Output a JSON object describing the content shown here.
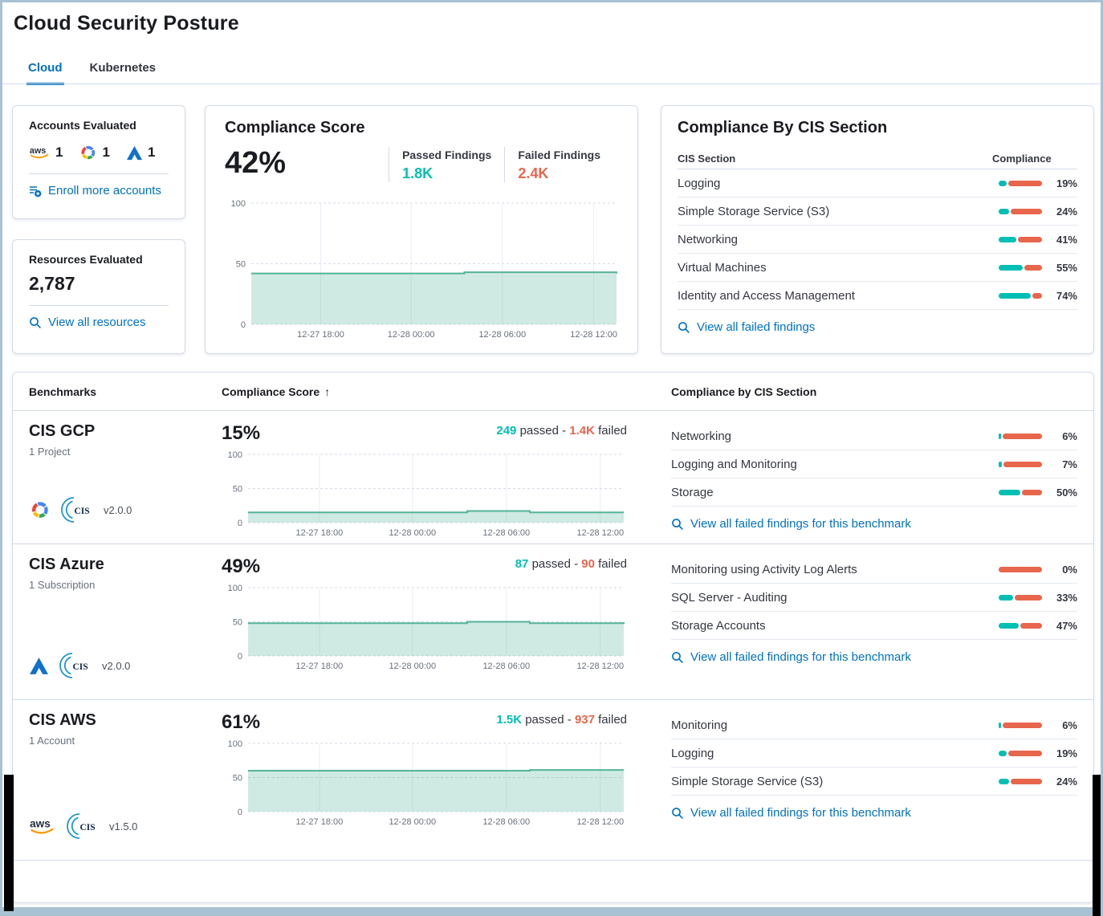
{
  "page": {
    "title": "Cloud Security Posture"
  },
  "tabs": [
    {
      "label": "Cloud",
      "active": true
    },
    {
      "label": "Kubernetes",
      "active": false
    }
  ],
  "colors": {
    "accent_blue": "#0071c2",
    "passed_teal": "#00bfb3",
    "failed_red": "#e7664c",
    "trend_line": "#54b399"
  },
  "accounts_card": {
    "title": "Accounts Evaluated",
    "providers": [
      {
        "icon": "aws-icon",
        "count": "1"
      },
      {
        "icon": "gcp-icon",
        "count": "1"
      },
      {
        "icon": "azure-icon",
        "count": "1"
      }
    ],
    "link": "Enroll more accounts"
  },
  "resources_card": {
    "title": "Resources Evaluated",
    "count": "2,787",
    "link": "View all resources"
  },
  "score_card": {
    "title": "Compliance Score",
    "score": "42%",
    "passed_label": "Passed Findings",
    "passed_value": "1.8K",
    "failed_label": "Failed Findings",
    "failed_value": "2.4K"
  },
  "cis_card": {
    "title": "Compliance By CIS Section",
    "col_section": "CIS Section",
    "col_compliance": "Compliance",
    "rows": [
      {
        "name": "Logging",
        "pct": 19,
        "pct_label": "19%"
      },
      {
        "name": "Simple Storage Service (S3)",
        "pct": 24,
        "pct_label": "24%"
      },
      {
        "name": "Networking",
        "pct": 41,
        "pct_label": "41%"
      },
      {
        "name": "Virtual Machines",
        "pct": 55,
        "pct_label": "55%"
      },
      {
        "name": "Identity and Access Management",
        "pct": 74,
        "pct_label": "74%"
      }
    ],
    "link": "View all failed findings"
  },
  "benchmarks": {
    "col_benchmarks": "Benchmarks",
    "col_score": "Compliance Score",
    "sort_icon": "↑",
    "col_cis": "Compliance by CIS Section",
    "link": "View all failed findings for this benchmark",
    "rows": [
      {
        "name": "CIS GCP",
        "subtitle": "1 Project",
        "provider_icon": "gcp-icon",
        "version": "v2.0.0",
        "score": "15%",
        "passed_value": "249",
        "passed_suffix": "passed -",
        "failed_value": "1.4K",
        "failed_suffix": "failed",
        "sections": [
          {
            "name": "Networking",
            "pct": 6,
            "pct_label": "6%"
          },
          {
            "name": "Logging and Monitoring",
            "pct": 7,
            "pct_label": "7%"
          },
          {
            "name": "Storage",
            "pct": 50,
            "pct_label": "50%"
          }
        ]
      },
      {
        "name": "CIS Azure",
        "subtitle": "1 Subscription",
        "provider_icon": "azure-icon",
        "version": "v2.0.0",
        "score": "49%",
        "passed_value": "87",
        "passed_suffix": "passed -",
        "failed_value": "90",
        "failed_suffix": "failed",
        "sections": [
          {
            "name": "Monitoring using Activity Log Alerts",
            "pct": 0,
            "pct_label": "0%"
          },
          {
            "name": "SQL Server - Auditing",
            "pct": 33,
            "pct_label": "33%"
          },
          {
            "name": "Storage Accounts",
            "pct": 47,
            "pct_label": "47%"
          }
        ]
      },
      {
        "name": "CIS AWS",
        "subtitle": "1 Account",
        "provider_icon": "aws-icon",
        "version": "v1.5.0",
        "score": "61%",
        "passed_value": "1.5K",
        "passed_suffix": "passed -",
        "failed_value": "937",
        "failed_suffix": "failed",
        "sections": [
          {
            "name": "Monitoring",
            "pct": 6,
            "pct_label": "6%"
          },
          {
            "name": "Logging",
            "pct": 19,
            "pct_label": "19%"
          },
          {
            "name": "Simple Storage Service (S3)",
            "pct": 24,
            "pct_label": "24%"
          }
        ]
      }
    ]
  },
  "chart_data": [
    {
      "id": "overall-compliance-trend",
      "type": "area",
      "ylim": [
        0,
        100
      ],
      "yticks": [
        "0",
        "50",
        "100"
      ],
      "xticks": [
        {
          "label": "12-27 18:00",
          "pos": 0.19
        },
        {
          "label": "12-28 00:00",
          "pos": 0.4375
        },
        {
          "label": "12-28 06:00",
          "pos": 0.6875
        },
        {
          "label": "12-28 12:00",
          "pos": 0.9375
        }
      ],
      "values": [
        42,
        42,
        42,
        42,
        42,
        42,
        42,
        43,
        43,
        43,
        43,
        43,
        42
      ],
      "line": "#54b399",
      "fill": "rgba(84,179,153,0.28)",
      "grid": true
    },
    {
      "id": "cis-gcp-trend",
      "type": "area",
      "ylim": [
        0,
        100
      ],
      "yticks": [
        "0",
        "50",
        "100"
      ],
      "xticks": [
        {
          "label": "12-27 18:00",
          "pos": 0.19
        },
        {
          "label": "12-28 00:00",
          "pos": 0.4375
        },
        {
          "label": "12-28 06:00",
          "pos": 0.6875
        },
        {
          "label": "12-28 12:00",
          "pos": 0.9375
        }
      ],
      "values": [
        15,
        15,
        15,
        15,
        15,
        15,
        15,
        17,
        17,
        15,
        15,
        15,
        15
      ],
      "line": "#54b399",
      "fill": "rgba(84,179,153,0.28)",
      "grid": true
    },
    {
      "id": "cis-azure-trend",
      "type": "area",
      "ylim": [
        0,
        100
      ],
      "yticks": [
        "0",
        "50",
        "100"
      ],
      "xticks": [
        {
          "label": "12-27 18:00",
          "pos": 0.19
        },
        {
          "label": "12-28 00:00",
          "pos": 0.4375
        },
        {
          "label": "12-28 06:00",
          "pos": 0.6875
        },
        {
          "label": "12-28 12:00",
          "pos": 0.9375
        }
      ],
      "values": [
        48,
        48,
        48,
        48,
        48,
        48,
        48,
        50,
        50,
        48,
        48,
        48,
        49.5
      ],
      "line": "#54b399",
      "fill": "rgba(84,179,153,0.28)",
      "grid": true
    },
    {
      "id": "cis-aws-trend",
      "type": "area",
      "ylim": [
        0,
        100
      ],
      "yticks": [
        "0",
        "50",
        "100"
      ],
      "xticks": [
        {
          "label": "12-27 18:00",
          "pos": 0.19
        },
        {
          "label": "12-28 00:00",
          "pos": 0.4375
        },
        {
          "label": "12-28 06:00",
          "pos": 0.6875
        },
        {
          "label": "12-28 12:00",
          "pos": 0.9375
        }
      ],
      "values": [
        60,
        60,
        60,
        60,
        60,
        60,
        60,
        60,
        60,
        61,
        61,
        61,
        61
      ],
      "line": "#54b399",
      "fill": "rgba(84,179,153,0.28)",
      "grid": true
    }
  ]
}
